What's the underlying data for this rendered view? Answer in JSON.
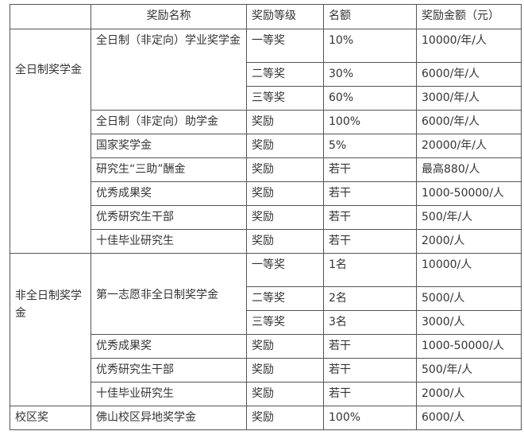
{
  "header": [
    "",
    "奖励名称",
    "奖励等级",
    "名额",
    "奖励金额（元）"
  ],
  "groups": [
    {
      "category": "全日制奖学金",
      "rows": [
        {
          "name": "全日制（非定向）学业奖学金",
          "level": "一等奖",
          "quota": "10%",
          "amount": "10000/年/人"
        },
        {
          "level": "二等奖",
          "quota": "30%",
          "amount": "6000/年/人"
        },
        {
          "level": "三等奖",
          "quota": "60%",
          "amount": "3000/年/人"
        },
        {
          "name": "全日制（非定向）助学金",
          "level": "奖励",
          "quota": "100%",
          "amount": "6000/年/人"
        },
        {
          "name": "国家奖学金",
          "level": "奖励",
          "quota": "5%",
          "amount": "20000/年/人"
        },
        {
          "name": "研究生“三助”酬金",
          "level": "奖励",
          "quota": "若干",
          "amount": "最高880/人"
        },
        {
          "name": "优秀成果奖",
          "level": "奖励",
          "quota": "若干",
          "amount": "1000-50000/人"
        },
        {
          "name": "优秀研究生干部",
          "level": "奖励",
          "quota": "若干",
          "amount": "500/年/人"
        },
        {
          "name": "十佳毕业研究生",
          "level": "奖励",
          "quota": "若干",
          "amount": "2000/人"
        }
      ]
    },
    {
      "category": "非全日制奖学金",
      "rows": [
        {
          "name": "第一志愿非全日制奖学金",
          "level": "一等奖",
          "quota": "1名",
          "amount": "10000/人"
        },
        {
          "level": "二等奖",
          "quota": "2名",
          "amount": "5000/人"
        },
        {
          "level": "三等奖",
          "quota": "3名",
          "amount": "3000/人"
        },
        {
          "name": "优秀成果奖",
          "level": "奖励",
          "quota": "若干",
          "amount": "1000-50000/人"
        },
        {
          "name": "优秀研究生干部",
          "level": "奖励",
          "quota": "若干",
          "amount": "500/年/人"
        },
        {
          "name": "十佳毕业研究生",
          "level": "奖励",
          "quota": "若干",
          "amount": "2000/人"
        }
      ]
    },
    {
      "category": "校区奖",
      "rows": [
        {
          "name": "佛山校区异地奖学金",
          "level": "奖励",
          "quota": "100%",
          "amount": "6000/人"
        }
      ]
    }
  ]
}
